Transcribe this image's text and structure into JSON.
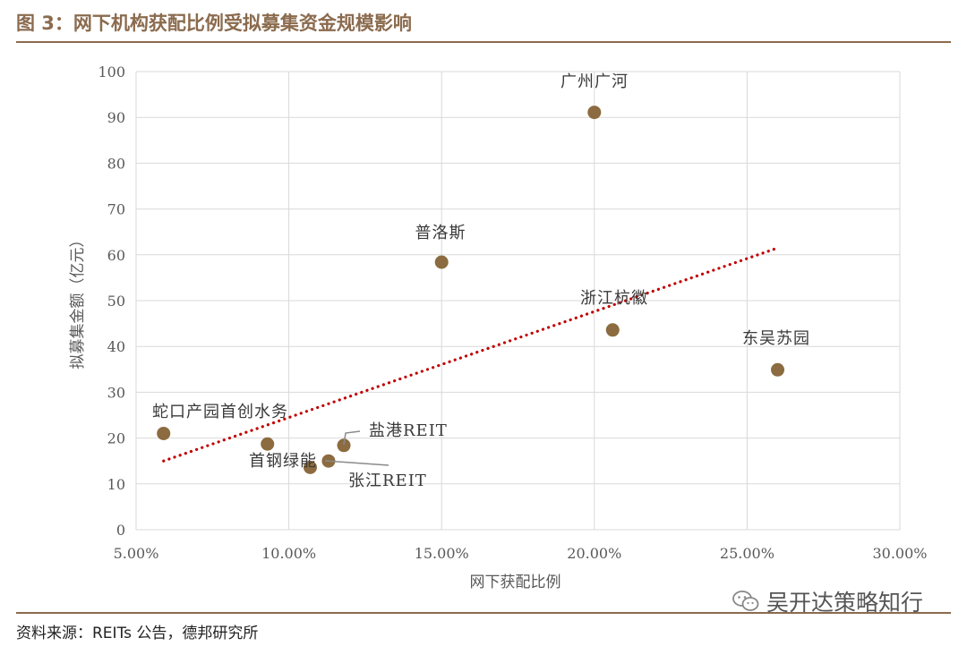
{
  "header": {
    "title": "图 3：网下机构获配比例受拟募集资金规模影响"
  },
  "footer": {
    "source": "资料来源：REITs 公告，德邦研究所"
  },
  "watermark": {
    "text": "吴开达策略知行",
    "icon": "wechat-icon"
  },
  "colors": {
    "accent": "#8B6B4E",
    "marker": "#8B6B3F",
    "trendline": "#C00000",
    "grid": "#D9D9D9"
  },
  "chart_data": {
    "type": "scatter",
    "title": "",
    "xlabel": "网下获配比例",
    "ylabel": "拟募集金额（亿元）",
    "xlim": [
      0.05,
      0.3
    ],
    "ylim": [
      0,
      100
    ],
    "x_ticks": [
      0.05,
      0.1,
      0.15,
      0.2,
      0.25,
      0.3
    ],
    "x_tick_labels": [
      "5.00%",
      "10.00%",
      "15.00%",
      "20.00%",
      "25.00%",
      "30.00%"
    ],
    "y_ticks": [
      0,
      10,
      20,
      30,
      40,
      50,
      60,
      70,
      80,
      90,
      100
    ],
    "y_tick_labels": [
      "0",
      "10",
      "20",
      "30",
      "40",
      "50",
      "60",
      "70",
      "80",
      "90",
      "100"
    ],
    "grid": true,
    "legend": false,
    "points": [
      {
        "label": "蛇口产园",
        "x": 0.059,
        "y": 21.0
      },
      {
        "label": "首创水务",
        "x": 0.093,
        "y": 18.7
      },
      {
        "label": "首钢绿能",
        "x": 0.107,
        "y": 13.6
      },
      {
        "label": "张江REIT",
        "x": 0.113,
        "y": 15.0
      },
      {
        "label": "盐港REIT",
        "x": 0.118,
        "y": 18.4
      },
      {
        "label": "普洛斯",
        "x": 0.15,
        "y": 58.4
      },
      {
        "label": "广州广河",
        "x": 0.2,
        "y": 91.1
      },
      {
        "label": "浙江杭徽",
        "x": 0.206,
        "y": 43.6
      },
      {
        "label": "东吴苏园",
        "x": 0.26,
        "y": 34.9
      }
    ],
    "annotations": [
      {
        "text": "蛇口产园首创水务"
      },
      {
        "text": "首钢绿能"
      },
      {
        "text": "盐港REIT"
      },
      {
        "text": "张江REIT"
      },
      {
        "text": "普洛斯"
      },
      {
        "text": "广州广河"
      },
      {
        "text": "浙江杭徽"
      },
      {
        "text": "东吴苏园"
      }
    ],
    "trendline": {
      "style": "dotted",
      "from": {
        "x": 0.059,
        "y": 15.0
      },
      "to": {
        "x": 0.26,
        "y": 61.5
      }
    }
  }
}
